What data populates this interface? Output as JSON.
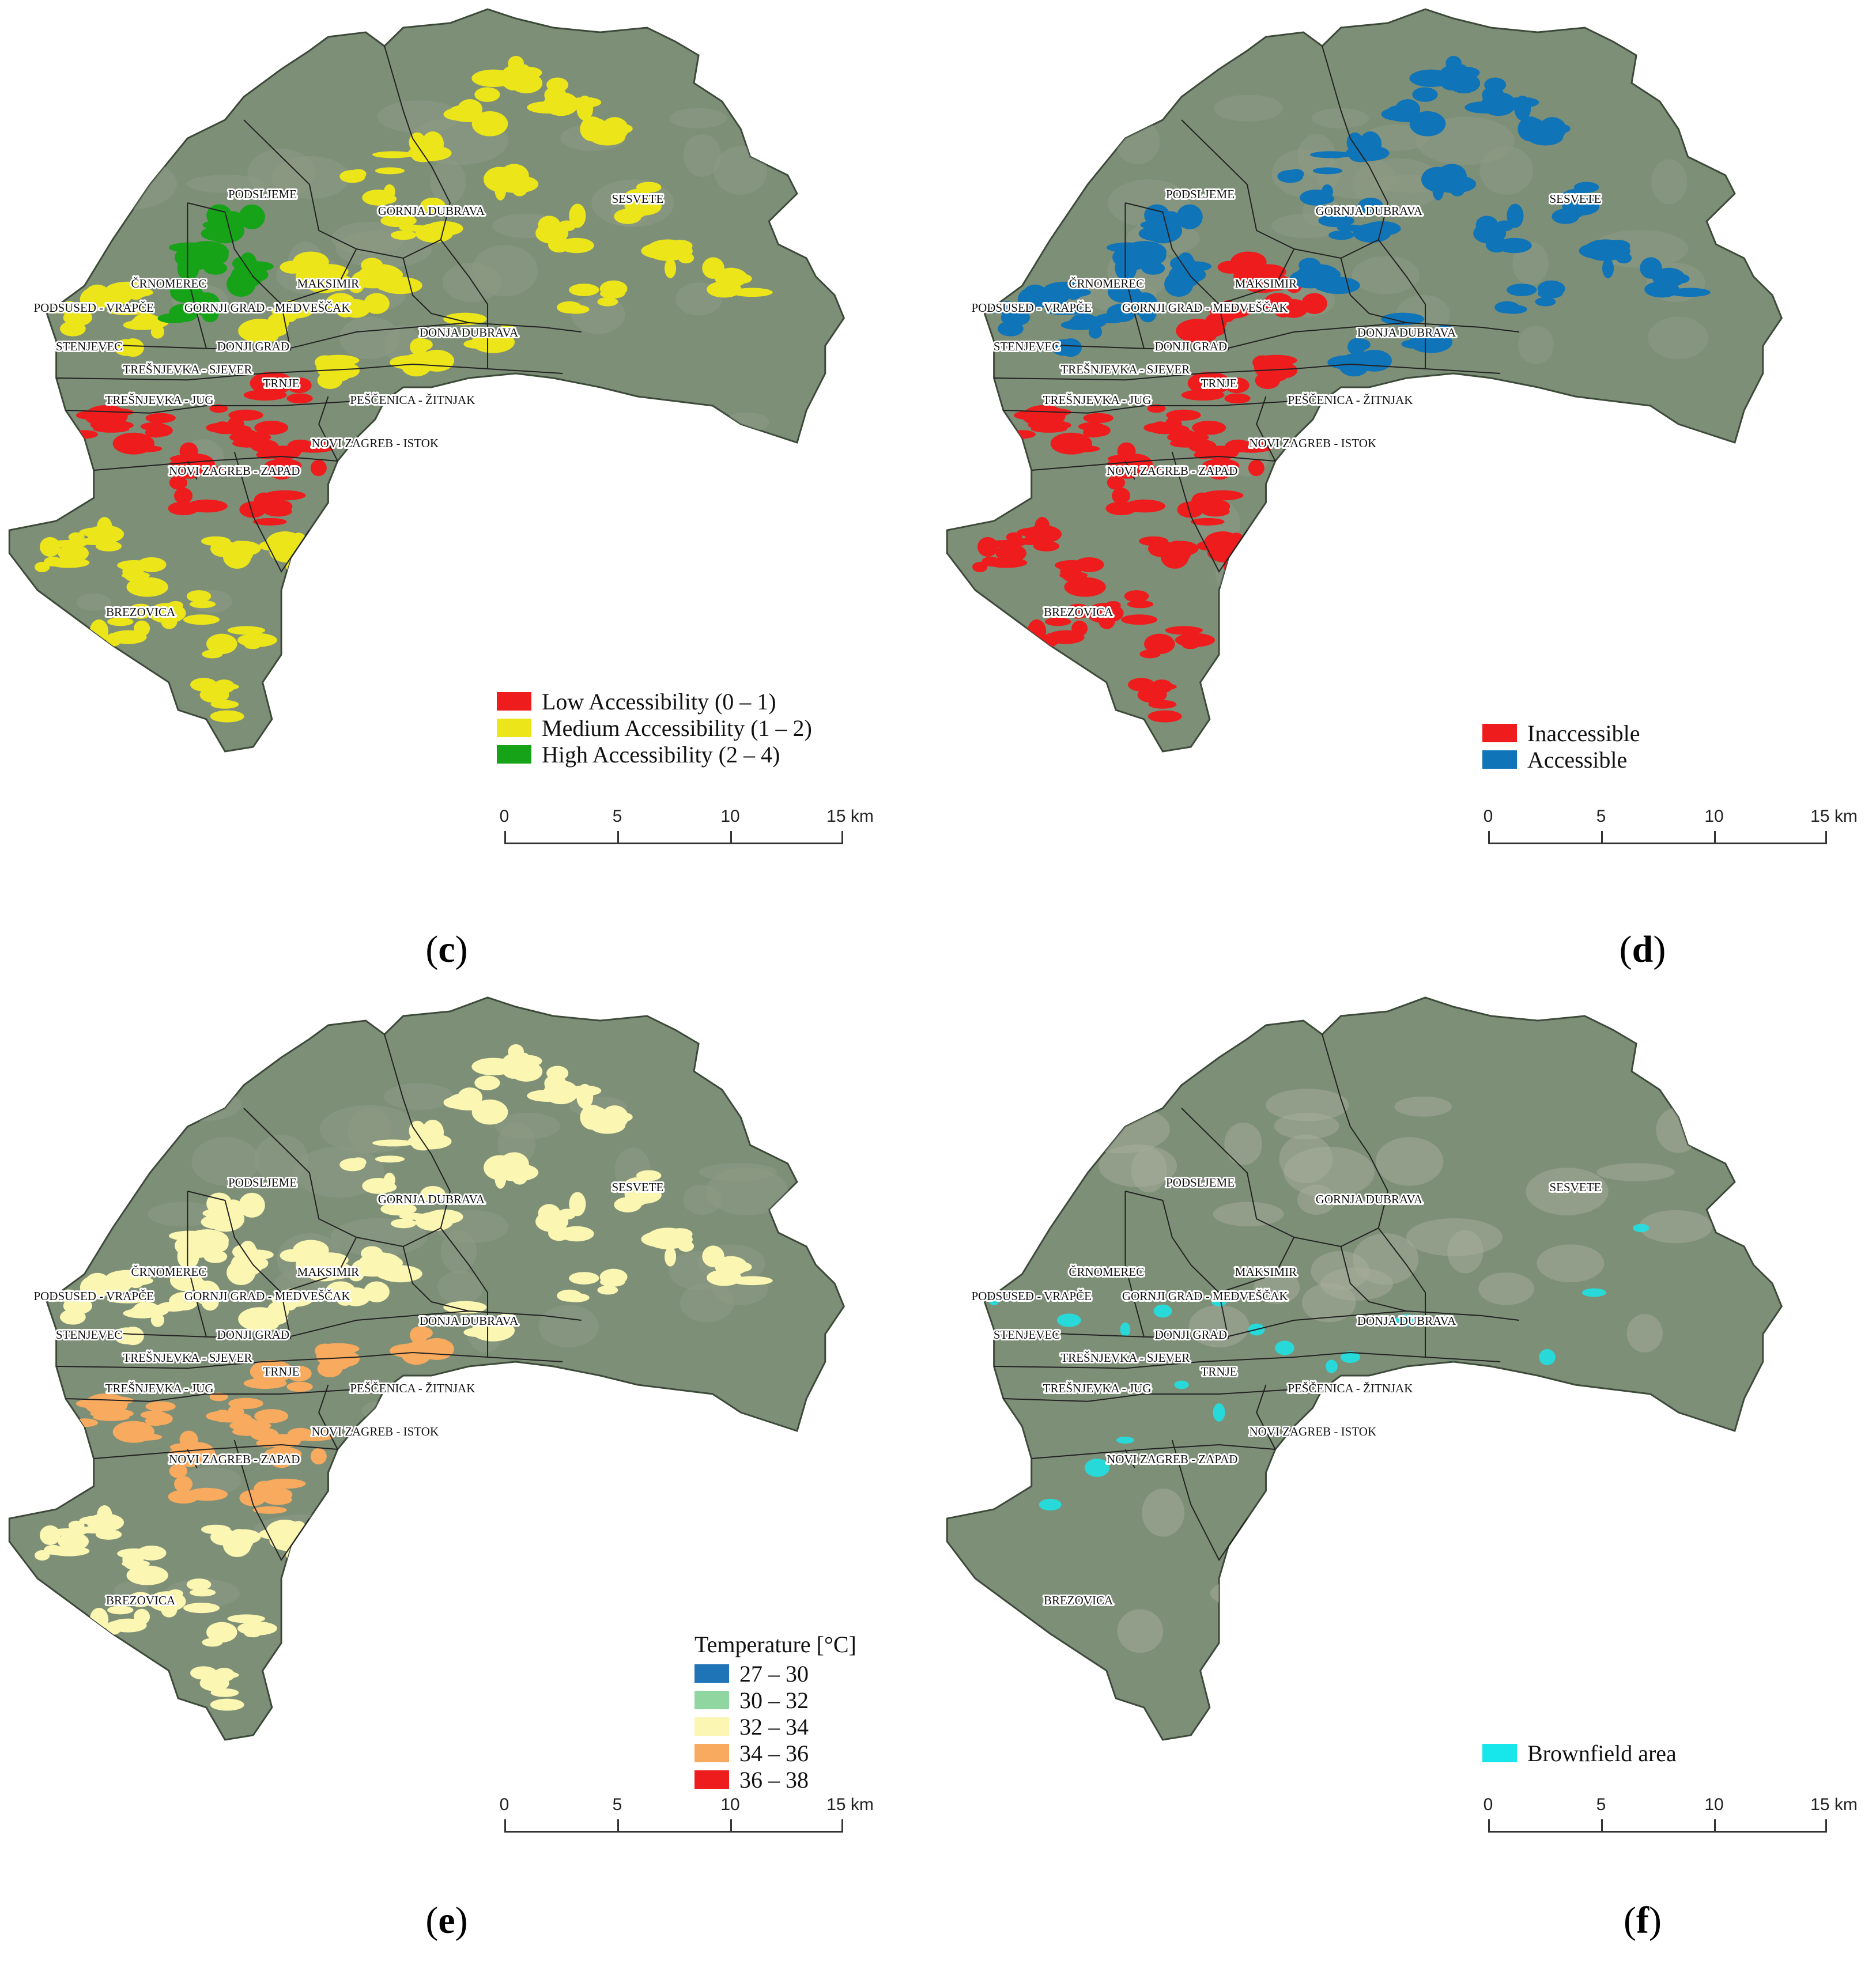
{
  "scale_bar": {
    "ticks": [
      "0",
      "5",
      "10",
      "15 km"
    ],
    "max_km": 15
  },
  "districts": [
    {
      "name": "PODSLJEME",
      "lx": 0.28,
      "ly": 0.215
    },
    {
      "name": "GORNJA DUBRAVA",
      "lx": 0.46,
      "ly": 0.233
    },
    {
      "name": "SESVETE",
      "lx": 0.68,
      "ly": 0.22
    },
    {
      "name": "ČRNOMEREC",
      "lx": 0.18,
      "ly": 0.312
    },
    {
      "name": "MAKSIMIR",
      "lx": 0.35,
      "ly": 0.312
    },
    {
      "name": "PODSUSED - VRAPČE",
      "lx": 0.1,
      "ly": 0.338
    },
    {
      "name": "GORNJI GRAD - MEDVEŠČAK",
      "lx": 0.285,
      "ly": 0.338
    },
    {
      "name": "STENJEVEC",
      "lx": 0.095,
      "ly": 0.38
    },
    {
      "name": "DONJI GRAD",
      "lx": 0.27,
      "ly": 0.38
    },
    {
      "name": "DONJA DUBRAVA",
      "lx": 0.5,
      "ly": 0.365
    },
    {
      "name": "TREŠNJEVKA - SJEVER",
      "lx": 0.2,
      "ly": 0.405
    },
    {
      "name": "TRNJE",
      "lx": 0.3,
      "ly": 0.42
    },
    {
      "name": "TREŠNJEVKA - JUG",
      "lx": 0.17,
      "ly": 0.438
    },
    {
      "name": "PEŠČENICA - ŽITNJAK",
      "lx": 0.44,
      "ly": 0.438
    },
    {
      "name": "NOVI ZAGREB - ISTOK",
      "lx": 0.4,
      "ly": 0.485
    },
    {
      "name": "NOVI ZAGREB - ZAPAD",
      "lx": 0.25,
      "ly": 0.515
    },
    {
      "name": "BREZOVICA",
      "lx": 0.15,
      "ly": 0.668
    }
  ],
  "colors": {
    "map_base": "#7e8f78",
    "low": "#ee1c1c",
    "medium": "#ece51a",
    "high": "#16a318",
    "inaccessible": "#ee1c1c",
    "accessible": "#0f74b8",
    "t1": "#1f73b7",
    "t2": "#8fd6a0",
    "t3": "#fbf6b1",
    "t4": "#f8aa5e",
    "t5": "#ee1c1c",
    "brownfield": "#17e7ea"
  },
  "panels": [
    {
      "caption": "c",
      "legend_title": "",
      "legend": [
        {
          "label": "Low Accessibility (0 – 1)",
          "color": "#ee1c1c"
        },
        {
          "label": "Medium Accessibility (1 – 2)",
          "color": "#ece51a"
        },
        {
          "label": "High Accessibility (2 – 4)",
          "color": "#16a318"
        }
      ]
    },
    {
      "caption": "d",
      "legend_title": "",
      "legend": [
        {
          "label": "Inaccessible",
          "color": "#ee1c1c"
        },
        {
          "label": "Accessible",
          "color": "#0f74b8"
        }
      ]
    },
    {
      "caption": "e",
      "legend_title": "Temperature [°C]",
      "legend": [
        {
          "label": "27 – 30",
          "color": "#1f73b7"
        },
        {
          "label": "30 – 32",
          "color": "#8fd6a0"
        },
        {
          "label": "32 – 34",
          "color": "#fbf6b1"
        },
        {
          "label": "34 – 36",
          "color": "#f8aa5e"
        },
        {
          "label": "36 – 38",
          "color": "#ee1c1c"
        }
      ]
    },
    {
      "caption": "f",
      "legend_title": "",
      "legend": [
        {
          "label": "Brownfield area",
          "color": "#17e7ea"
        }
      ]
    }
  ]
}
